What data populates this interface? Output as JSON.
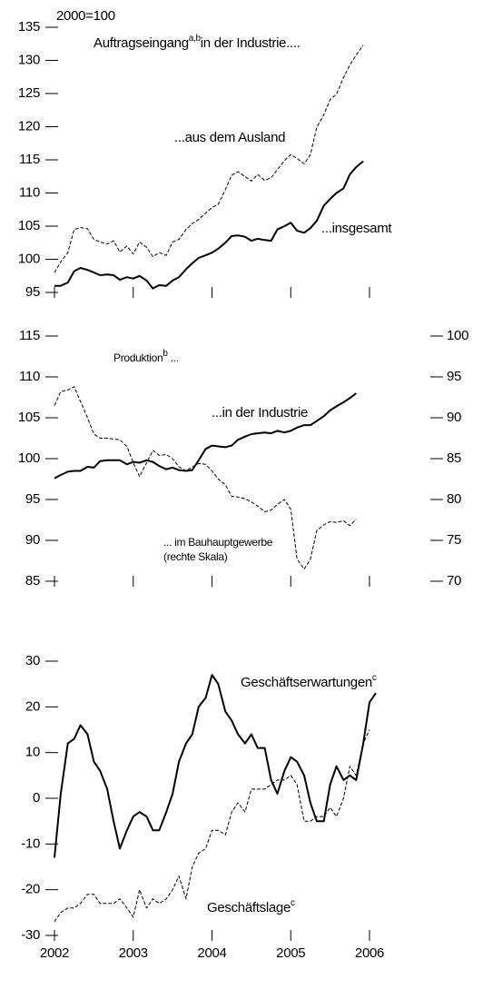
{
  "chart_data": [
    {
      "type": "line",
      "unit_label": "2000=100",
      "title": "Auftragseingang",
      "title_sup": "a,b",
      "title_rest": "in der Industrie....",
      "x": [
        2002,
        2002.08,
        2002.17,
        2002.25,
        2002.33,
        2002.42,
        2002.5,
        2002.58,
        2002.67,
        2002.75,
        2002.83,
        2002.92,
        2003,
        2003.08,
        2003.17,
        2003.25,
        2003.33,
        2003.42,
        2003.5,
        2003.58,
        2003.67,
        2003.75,
        2003.83,
        2003.92,
        2004,
        2004.08,
        2004.17,
        2004.25,
        2004.33,
        2004.42,
        2004.5,
        2004.58,
        2004.67,
        2004.75,
        2004.83,
        2004.92,
        2005,
        2005.08,
        2005.17,
        2005.25,
        2005.33,
        2005.42,
        2005.5,
        2005.58,
        2005.67,
        2005.75,
        2005.83,
        2005.92
      ],
      "series": [
        {
          "name": "...aus dem Ausland",
          "color": "#000000",
          "dashed": true,
          "values": [
            98,
            99.6,
            101,
            104.5,
            104.8,
            104.6,
            103,
            102.6,
            102.3,
            102.8,
            101.1,
            102,
            100.8,
            102.6,
            101.8,
            100.4,
            101,
            100.6,
            102.6,
            103,
            104.5,
            105.4,
            106,
            107,
            107.8,
            108.3,
            110.5,
            112.7,
            113.2,
            112.5,
            111.8,
            112.8,
            111.9,
            112.3,
            113.5,
            114.9,
            115.8,
            115.2,
            114.4,
            115.8,
            119.9,
            121.8,
            124.1,
            124.9,
            127.4,
            129.3,
            130.8,
            132.3
          ]
        },
        {
          "name": "...insgesamt",
          "color": "#000000",
          "dashed": false,
          "values": [
            96,
            96,
            96.5,
            98.2,
            98.7,
            98.4,
            98,
            97.6,
            97.7,
            97.6,
            96.9,
            97.3,
            97.1,
            97.5,
            96.8,
            95.6,
            96.1,
            96,
            96.8,
            97.3,
            98.5,
            99.4,
            100.2,
            100.6,
            101,
            101.6,
            102.5,
            103.5,
            103.6,
            103.4,
            102.8,
            103.1,
            102.9,
            102.8,
            104.5,
            105,
            105.5,
            104.3,
            104,
            104.7,
            105.8,
            108.1,
            109.1,
            110,
            110.7,
            112.8,
            113.9,
            114.8
          ]
        }
      ],
      "xlim": [
        2002,
        2006
      ],
      "xticks": [
        2002,
        2003,
        2004,
        2005,
        2006
      ],
      "show_xtick_labels": false,
      "ylim": [
        95,
        135
      ],
      "yticks": [
        95,
        100,
        105,
        110,
        115,
        120,
        125,
        130,
        135
      ]
    },
    {
      "type": "line",
      "subtitle": "Produktion",
      "subtitle_sup": "b",
      "subtitle_rest": " ...",
      "x": [
        2002,
        2002.08,
        2002.17,
        2002.25,
        2002.33,
        2002.42,
        2002.5,
        2002.58,
        2002.67,
        2002.75,
        2002.83,
        2002.92,
        2003,
        2003.08,
        2003.17,
        2003.25,
        2003.33,
        2003.42,
        2003.5,
        2003.58,
        2003.67,
        2003.75,
        2003.83,
        2003.92,
        2004,
        2004.08,
        2004.17,
        2004.25,
        2004.33,
        2004.42,
        2004.5,
        2004.58,
        2004.67,
        2004.75,
        2004.83,
        2004.92,
        2005,
        2005.08,
        2005.17,
        2005.25,
        2005.33,
        2005.42,
        2005.5,
        2005.58,
        2005.67,
        2005.75,
        2005.83
      ],
      "series": [
        {
          "name": "...in der Industrie",
          "color": "#000000",
          "dashed": false,
          "values": [
            97.6,
            98,
            98.4,
            98.5,
            98.5,
            99,
            98.9,
            99.7,
            99.8,
            99.8,
            99.8,
            99.3,
            99.6,
            99.5,
            99.8,
            99.6,
            99.1,
            98.7,
            98.9,
            98.6,
            98.5,
            98.6,
            99.8,
            101.2,
            101.6,
            101.5,
            101.4,
            101.6,
            102.3,
            102.7,
            103,
            103.1,
            103.2,
            103.1,
            103.4,
            103.2,
            103.4,
            103.8,
            104.1,
            104.1,
            104.6,
            105.2,
            105.9,
            106.4,
            106.9,
            107.4,
            108
          ]
        },
        {
          "name": "... im Bauhauptgewerbe",
          "note": "(rechte Skala)",
          "color": "#000000",
          "dashed": true,
          "axis": "y2",
          "values": [
            91.5,
            93.2,
            93.4,
            93.8,
            92,
            90,
            88,
            87.5,
            87.5,
            87.4,
            87.3,
            86.5,
            84.5,
            82.8,
            84.5,
            86,
            85.4,
            85.5,
            85,
            84,
            83.5,
            84,
            84.4,
            84.3,
            83.5,
            82.5,
            81.8,
            80.4,
            80.3,
            80.1,
            79.7,
            79.2,
            78.5,
            78.7,
            79.4,
            80,
            78.8,
            72.7,
            71.5,
            72.7,
            76.2,
            76.9,
            77.3,
            77.2,
            77.4,
            76.8,
            77.6
          ]
        }
      ],
      "xlim": [
        2002,
        2006
      ],
      "xticks": [
        2002,
        2003,
        2004,
        2005,
        2006
      ],
      "show_xtick_labels": false,
      "ylim": [
        85,
        115
      ],
      "yticks": [
        85,
        90,
        95,
        100,
        105,
        110,
        115
      ],
      "y2lim": [
        70,
        100
      ],
      "y2ticks": [
        70,
        75,
        80,
        85,
        90,
        95,
        100
      ]
    },
    {
      "type": "line",
      "x": [
        2002,
        2002.08,
        2002.17,
        2002.25,
        2002.33,
        2002.42,
        2002.5,
        2002.58,
        2002.67,
        2002.75,
        2002.83,
        2002.92,
        2003,
        2003.08,
        2003.17,
        2003.25,
        2003.33,
        2003.42,
        2003.5,
        2003.58,
        2003.67,
        2003.75,
        2003.83,
        2003.92,
        2004,
        2004.08,
        2004.17,
        2004.25,
        2004.33,
        2004.42,
        2004.5,
        2004.58,
        2004.67,
        2004.75,
        2004.83,
        2004.92,
        2005,
        2005.08,
        2005.17,
        2005.25,
        2005.33,
        2005.42,
        2005.5,
        2005.58,
        2005.67,
        2005.75,
        2005.83,
        2005.92,
        2006,
        2006.08
      ],
      "series": [
        {
          "name": "Geschäftserwartungen",
          "name_sup": "c",
          "color": "#000000",
          "dashed": false,
          "values": [
            -13,
            1,
            12,
            13,
            16,
            14,
            8,
            6,
            2,
            -5,
            -11,
            -7,
            -4,
            -3,
            -4,
            -7,
            -7,
            -3,
            1,
            8,
            12,
            14,
            20,
            22,
            27,
            25,
            19,
            17,
            14,
            12,
            14,
            11,
            11,
            4,
            1,
            6,
            9,
            8,
            5,
            -1,
            -5,
            -5,
            3,
            7,
            4,
            5,
            4,
            12,
            21,
            23
          ]
        },
        {
          "name": "Geschäftslage",
          "name_sup": "c",
          "color": "#000000",
          "dashed": true,
          "values": [
            -27,
            -25,
            -24,
            -24,
            -23,
            -21,
            -21,
            -23,
            -23,
            -23,
            -22,
            -24,
            -26,
            -20,
            -24,
            -22,
            -23,
            -22,
            -20,
            -17,
            -22,
            -15,
            -12,
            -11,
            -7,
            -7,
            -8,
            -3,
            -1,
            -3,
            2,
            2,
            2,
            3,
            4,
            4,
            5,
            3,
            -5,
            -5,
            -4,
            -4,
            -2,
            -4,
            0,
            7,
            5,
            12,
            15,
            null
          ]
        }
      ],
      "xlim": [
        2002,
        2006
      ],
      "xticks": [
        2002,
        2003,
        2004,
        2005,
        2006
      ],
      "show_xtick_labels": true,
      "ylim": [
        -30,
        30
      ],
      "yticks": [
        -30,
        -20,
        -10,
        0,
        10,
        20,
        30
      ]
    }
  ]
}
